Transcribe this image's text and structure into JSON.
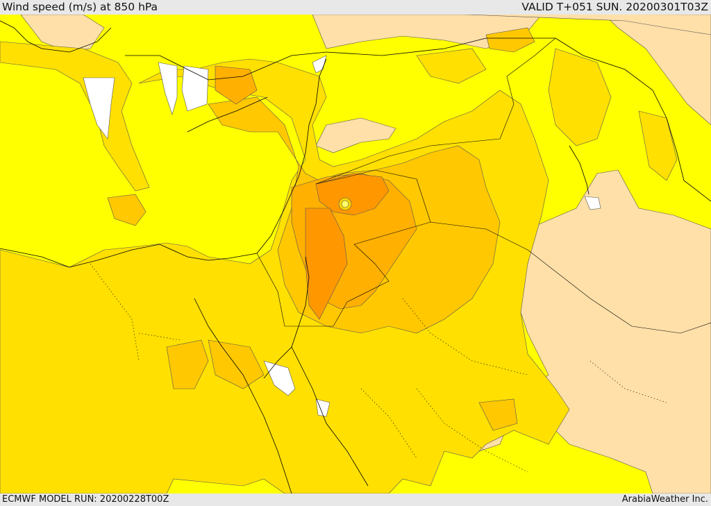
{
  "header": {
    "title": "Wind speed (m/s) at 850 hPa",
    "valid_time": "VALID T+051 SUN. 20200301T03Z"
  },
  "footer": {
    "model_run": "ECMWF MODEL RUN: 20200228T00Z",
    "credit": "ArabiaWeather Inc."
  },
  "colors": {
    "calm": "#ffffff",
    "light": "#ffe0a8",
    "moderate": "#ffff00",
    "fresh": "#ffe000",
    "strong": "#ffc800",
    "gale": "#ffb000",
    "storm": "#ff9800",
    "peak": "#ffff66",
    "coastline": "#000000",
    "contour": "#555555"
  }
}
